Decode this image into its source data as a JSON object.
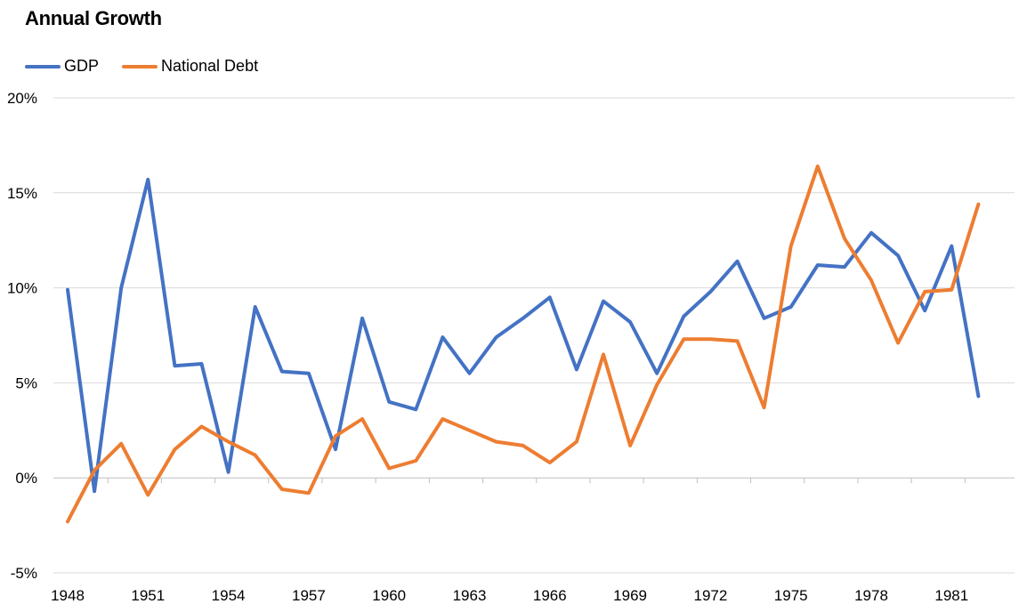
{
  "chart_data": {
    "type": "line",
    "title": "Annual Growth",
    "xlabel": "",
    "ylabel": "",
    "x": [
      1948,
      1949,
      1950,
      1951,
      1952,
      1953,
      1954,
      1955,
      1956,
      1957,
      1958,
      1959,
      1960,
      1961,
      1962,
      1963,
      1964,
      1965,
      1966,
      1967,
      1968,
      1969,
      1970,
      1971,
      1972,
      1973,
      1974,
      1975,
      1976,
      1977,
      1978,
      1979,
      1980,
      1981,
      1982
    ],
    "x_tick_labels": [
      "1948",
      "1951",
      "1954",
      "1957",
      "1960",
      "1963",
      "1966",
      "1969",
      "1972",
      "1975",
      "1978",
      "1981"
    ],
    "y_tick_labels": [
      "20%",
      "15%",
      "10%",
      "5%",
      "0%",
      "-5%"
    ],
    "y_ticks": [
      20,
      15,
      10,
      5,
      0,
      -5
    ],
    "ylim": [
      -5,
      20
    ],
    "grid": "horizontal",
    "legend_position": "top-left",
    "series": [
      {
        "name": "GDP",
        "color": "#4472C4",
        "values": [
          9.9,
          -0.7,
          10.0,
          15.7,
          5.9,
          6.0,
          0.3,
          9.0,
          5.6,
          5.5,
          1.5,
          8.4,
          4.0,
          3.6,
          7.4,
          5.5,
          7.4,
          8.4,
          9.5,
          5.7,
          9.3,
          8.2,
          5.5,
          8.5,
          9.8,
          11.4,
          8.4,
          9.0,
          11.2,
          11.1,
          12.9,
          11.7,
          8.8,
          12.2,
          4.3
        ]
      },
      {
        "name": "National Debt",
        "color": "#ED7D31",
        "values": [
          -2.3,
          0.4,
          1.8,
          -0.9,
          1.5,
          2.7,
          1.9,
          1.2,
          -0.6,
          -0.8,
          2.2,
          3.1,
          0.5,
          0.9,
          3.1,
          2.5,
          1.9,
          1.7,
          0.8,
          1.9,
          6.5,
          1.7,
          4.9,
          7.3,
          7.3,
          7.2,
          3.7,
          12.2,
          16.4,
          12.6,
          10.4,
          7.1,
          9.8,
          9.9,
          14.4
        ]
      }
    ]
  }
}
